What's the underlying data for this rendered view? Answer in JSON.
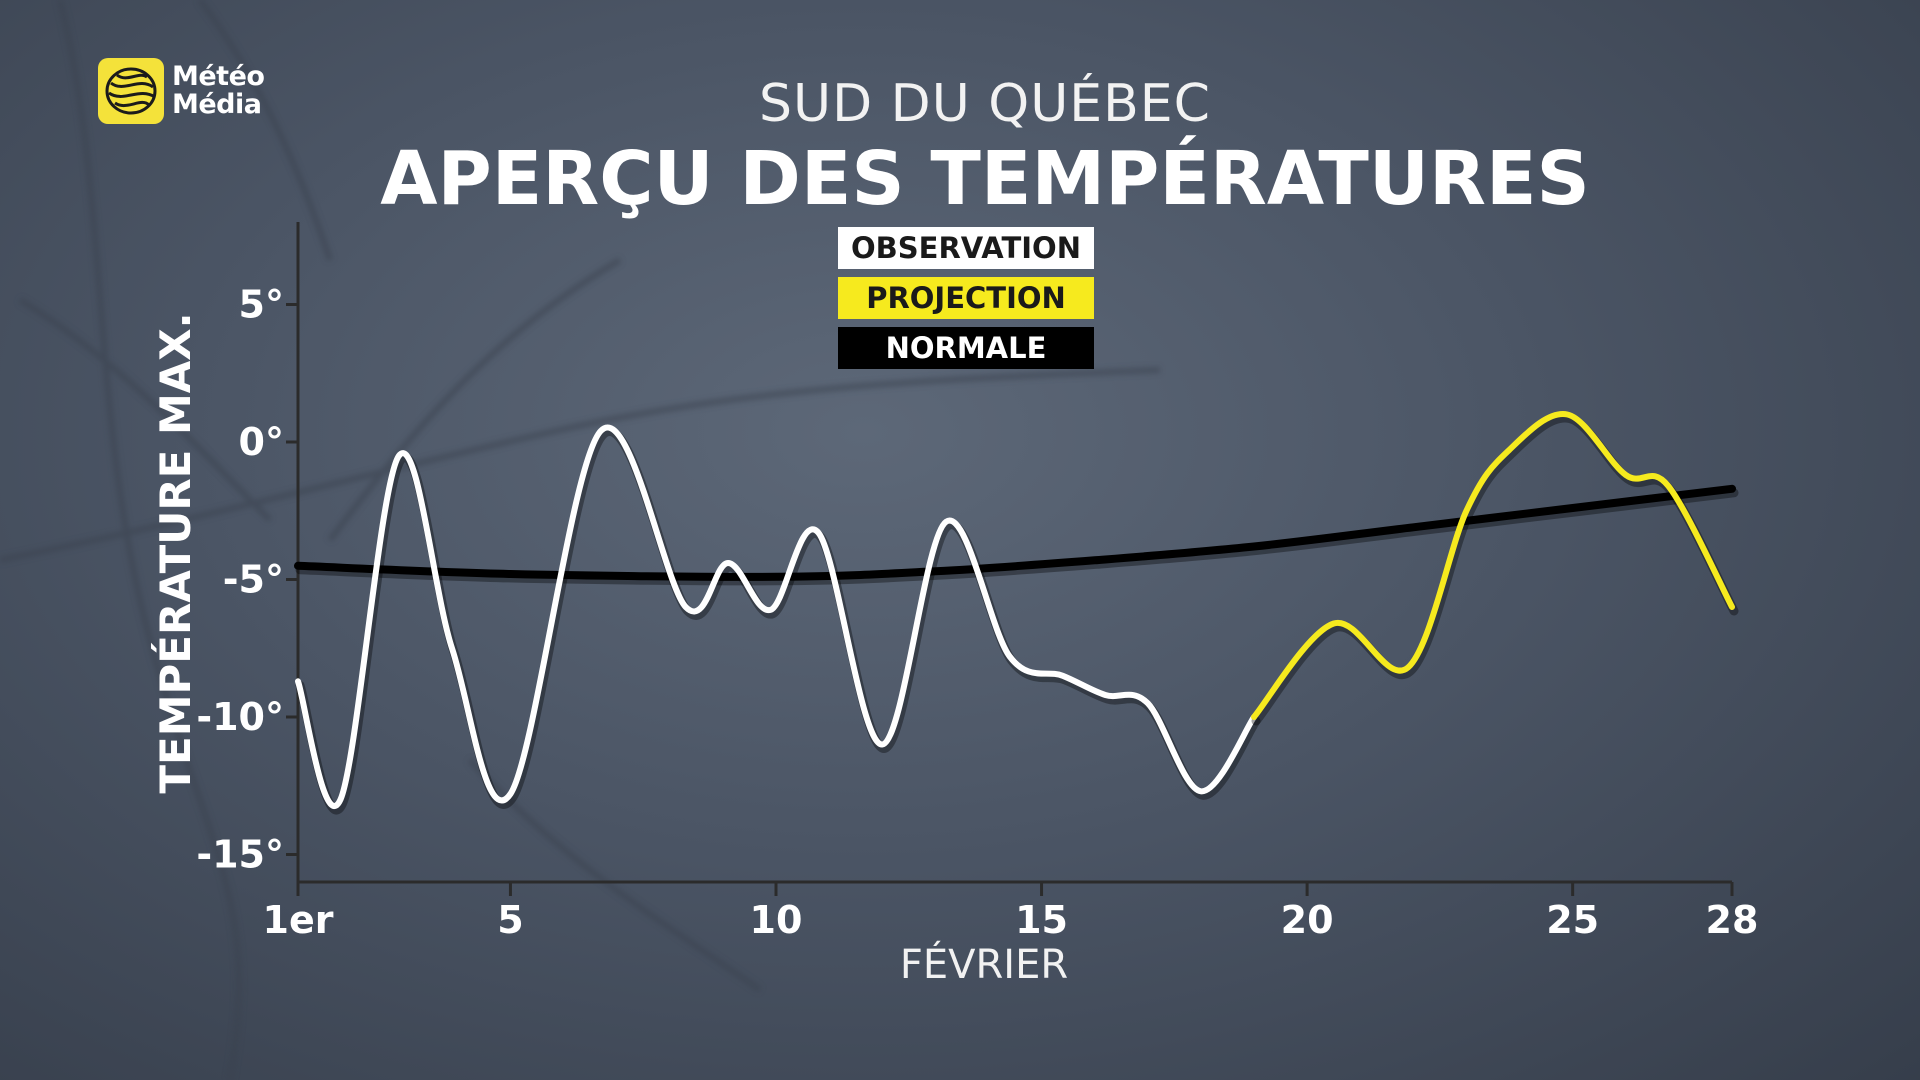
{
  "header": {
    "subtitle": "SUD DU QUÉBEC",
    "title": "APERÇU DES TEMPÉRATURES"
  },
  "logo": {
    "line1": "Météo",
    "line2": "Média",
    "icon": "meteomedia-globe-icon",
    "color": "#f4e23a"
  },
  "legend": {
    "observation": "OBSERVATION",
    "projection": "PROJECTION",
    "normale": "NORMALE"
  },
  "colors": {
    "observation": "#ffffff",
    "projection": "#f6ea1e",
    "normale": "#000000",
    "axis": "#2b2b2b"
  },
  "chart_data": {
    "type": "line",
    "xlabel": "FÉVRIER",
    "ylabel": "TEMPÉRATURE MAX.",
    "xlim": [
      1,
      28
    ],
    "ylim": [
      -16,
      8
    ],
    "x_ticks": [
      1,
      5,
      10,
      15,
      20,
      25,
      28
    ],
    "x_tick_labels": [
      "1er",
      "5",
      "10",
      "15",
      "20",
      "25",
      "28"
    ],
    "y_ticks": [
      5,
      0,
      -5,
      -10,
      -15
    ],
    "y_tick_labels": [
      "5°",
      "0°",
      "-5°",
      "-10°",
      "-15°"
    ],
    "grid": false,
    "series": [
      {
        "name": "OBSERVATION",
        "x": [
          1,
          1.8,
          2.9,
          3.9,
          5.0,
          6.7,
          8.3,
          9.1,
          9.9,
          10.8,
          12.0,
          13.2,
          14.4,
          15.4,
          16.2,
          17.0,
          18.0,
          19.0
        ],
        "y": [
          -8.7,
          -13.0,
          -0.5,
          -7.5,
          -12.8,
          0.4,
          -6.0,
          -4.4,
          -6.1,
          -3.3,
          -11.0,
          -2.9,
          -7.8,
          -8.5,
          -9.2,
          -9.5,
          -12.7,
          -10.0
        ]
      },
      {
        "name": "PROJECTION",
        "x": [
          19.0,
          20.5,
          21.9,
          23.0,
          23.8,
          24.9,
          26.0,
          26.8,
          28.0
        ],
        "y": [
          -10.0,
          -6.6,
          -8.2,
          -2.5,
          -0.3,
          1.0,
          -1.2,
          -1.6,
          -6.0
        ]
      },
      {
        "name": "NORMALE",
        "x": [
          1,
          5,
          10,
          13,
          16,
          19,
          22,
          25,
          28
        ],
        "y": [
          -4.5,
          -4.8,
          -4.9,
          -4.7,
          -4.3,
          -3.8,
          -3.1,
          -2.4,
          -1.7
        ]
      }
    ]
  }
}
